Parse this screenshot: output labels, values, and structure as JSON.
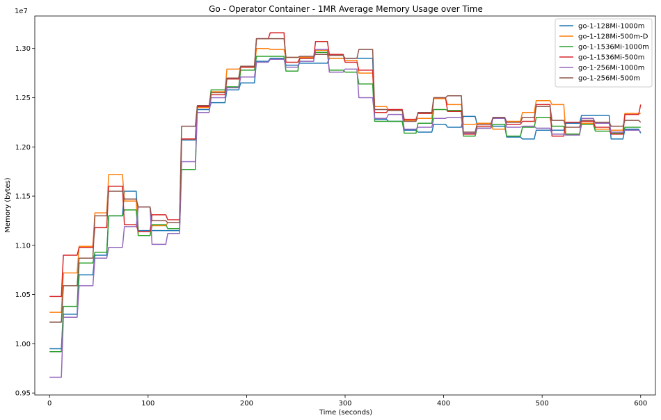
{
  "chart_data": {
    "type": "line",
    "title": "Go - Operator Container - 1MR Average Memory Usage over Time",
    "xlabel": "Time (seconds)",
    "ylabel": "Memory (bytes)",
    "y_offset_text": "1e7",
    "xlim": [
      -15,
      615
    ],
    "ylim": [
      9480000,
      13330000
    ],
    "x_ticks": [
      0,
      100,
      200,
      300,
      400,
      500,
      600
    ],
    "x_tick_labels": [
      "0",
      "100",
      "200",
      "300",
      "400",
      "500",
      "600"
    ],
    "y_ticks": [
      9500000,
      10000000,
      10500000,
      11000000,
      11500000,
      12000000,
      12500000,
      13000000
    ],
    "y_tick_labels": [
      "0.95",
      "1.00",
      "1.05",
      "1.10",
      "1.15",
      "1.20",
      "1.25",
      "1.30"
    ],
    "legend_position": "top-right",
    "series": [
      {
        "name": "go-1-128Mi-1000m",
        "color": "#1f77b4",
        "x": [
          0,
          12,
          14,
          28,
          30,
          44,
          46,
          58,
          60,
          74,
          76,
          88,
          90,
          102,
          104,
          118,
          120,
          132,
          134,
          148,
          150,
          162,
          164,
          178,
          180,
          192,
          194,
          208,
          210,
          222,
          224,
          238,
          240,
          252,
          254,
          268,
          270,
          282,
          284,
          298,
          300,
          312,
          314,
          328,
          330,
          342,
          344,
          358,
          360,
          372,
          374,
          388,
          390,
          402,
          404,
          418,
          420,
          432,
          434,
          448,
          450,
          462,
          464,
          478,
          480,
          492,
          494,
          508,
          510,
          522,
          524,
          538,
          540,
          552,
          554,
          568,
          570,
          582,
          584,
          598,
          600
        ],
        "y": [
          9950000,
          9950000,
          10300000,
          10300000,
          10700000,
          10700000,
          10900000,
          10900000,
          11300000,
          11300000,
          11550000,
          11550000,
          11150000,
          11150000,
          11150000,
          11150000,
          11150000,
          11150000,
          12070000,
          12070000,
          12380000,
          12380000,
          12450000,
          12450000,
          12580000,
          12580000,
          12650000,
          12650000,
          12870000,
          12870000,
          12900000,
          12900000,
          12830000,
          12830000,
          12850000,
          12850000,
          12850000,
          12850000,
          12900000,
          12900000,
          12900000,
          12900000,
          12900000,
          12900000,
          12280000,
          12280000,
          12260000,
          12260000,
          12170000,
          12170000,
          12150000,
          12150000,
          12230000,
          12230000,
          12200000,
          12200000,
          12310000,
          12310000,
          12230000,
          12230000,
          12210000,
          12210000,
          12100000,
          12100000,
          12080000,
          12080000,
          12170000,
          12170000,
          12170000,
          12170000,
          12240000,
          12240000,
          12320000,
          12320000,
          12320000,
          12320000,
          12080000,
          12080000,
          12180000,
          12180000,
          12140000
        ]
      },
      {
        "name": "go-1-128Mi-500m-D",
        "color": "#ff7f0e",
        "x": [
          0,
          12,
          14,
          28,
          30,
          44,
          46,
          58,
          60,
          74,
          76,
          88,
          90,
          102,
          104,
          118,
          120,
          132,
          134,
          148,
          150,
          162,
          164,
          178,
          180,
          192,
          194,
          208,
          210,
          222,
          224,
          238,
          240,
          252,
          254,
          268,
          270,
          282,
          284,
          298,
          300,
          312,
          314,
          328,
          330,
          342,
          344,
          358,
          360,
          372,
          374,
          388,
          390,
          402,
          404,
          418,
          420,
          432,
          434,
          448,
          450,
          462,
          464,
          478,
          480,
          492,
          494,
          508,
          510,
          522,
          524,
          538,
          540,
          552,
          554,
          568,
          570,
          582,
          584,
          598,
          600
        ],
        "y": [
          10320000,
          10320000,
          10720000,
          10720000,
          10990000,
          10990000,
          11330000,
          11330000,
          11720000,
          11720000,
          11450000,
          11450000,
          11100000,
          11100000,
          11200000,
          11200000,
          11230000,
          11230000,
          12080000,
          12080000,
          12400000,
          12400000,
          12560000,
          12560000,
          12790000,
          12790000,
          12810000,
          12810000,
          13000000,
          13000000,
          12990000,
          12990000,
          12910000,
          12910000,
          12910000,
          12910000,
          12980000,
          12980000,
          12900000,
          12900000,
          12880000,
          12880000,
          12750000,
          12750000,
          12410000,
          12410000,
          12370000,
          12370000,
          12270000,
          12270000,
          12290000,
          12290000,
          12490000,
          12490000,
          12430000,
          12430000,
          12230000,
          12230000,
          12240000,
          12240000,
          12180000,
          12180000,
          12260000,
          12260000,
          12350000,
          12350000,
          12470000,
          12470000,
          12430000,
          12430000,
          12130000,
          12130000,
          12240000,
          12240000,
          12180000,
          12180000,
          12170000,
          12170000,
          12340000,
          12340000,
          12340000
        ]
      },
      {
        "name": "go-1-1536Mi-1000m",
        "color": "#2ca02c",
        "x": [
          0,
          12,
          14,
          28,
          30,
          44,
          46,
          58,
          60,
          74,
          76,
          88,
          90,
          102,
          104,
          118,
          120,
          132,
          134,
          148,
          150,
          162,
          164,
          178,
          180,
          192,
          194,
          208,
          210,
          222,
          224,
          238,
          240,
          252,
          254,
          268,
          270,
          282,
          284,
          298,
          300,
          312,
          314,
          328,
          330,
          342,
          344,
          358,
          360,
          372,
          374,
          388,
          390,
          402,
          404,
          418,
          420,
          432,
          434,
          448,
          450,
          462,
          464,
          478,
          480,
          492,
          494,
          508,
          510,
          522,
          524,
          538,
          540,
          552,
          554,
          568,
          570,
          582,
          584,
          598,
          600
        ],
        "y": [
          9920000,
          9920000,
          10380000,
          10380000,
          10820000,
          10820000,
          10930000,
          10930000,
          11300000,
          11300000,
          11360000,
          11360000,
          11100000,
          11100000,
          11210000,
          11210000,
          11170000,
          11170000,
          11770000,
          11770000,
          12410000,
          12410000,
          12580000,
          12580000,
          12610000,
          12610000,
          12780000,
          12780000,
          12920000,
          12920000,
          12920000,
          12920000,
          12770000,
          12770000,
          12900000,
          12900000,
          12960000,
          12960000,
          12780000,
          12780000,
          12760000,
          12760000,
          12640000,
          12640000,
          12260000,
          12260000,
          12260000,
          12260000,
          12140000,
          12140000,
          12240000,
          12240000,
          12380000,
          12380000,
          12370000,
          12370000,
          12110000,
          12110000,
          12190000,
          12190000,
          12230000,
          12230000,
          12110000,
          12110000,
          12200000,
          12200000,
          12300000,
          12300000,
          12210000,
          12210000,
          12130000,
          12130000,
          12230000,
          12230000,
          12160000,
          12160000,
          12140000,
          12140000,
          12200000,
          12200000,
          12200000
        ]
      },
      {
        "name": "go-1-1536Mi-500m",
        "color": "#d62728",
        "x": [
          0,
          12,
          14,
          28,
          30,
          44,
          46,
          58,
          60,
          74,
          76,
          88,
          90,
          102,
          104,
          118,
          120,
          132,
          134,
          148,
          150,
          162,
          164,
          178,
          180,
          192,
          194,
          208,
          210,
          222,
          224,
          238,
          240,
          252,
          254,
          268,
          270,
          282,
          284,
          298,
          300,
          312,
          314,
          328,
          330,
          342,
          344,
          358,
          360,
          372,
          374,
          388,
          390,
          402,
          404,
          418,
          420,
          432,
          434,
          448,
          450,
          462,
          464,
          478,
          480,
          492,
          494,
          508,
          510,
          522,
          524,
          538,
          540,
          552,
          554,
          568,
          570,
          582,
          584,
          598,
          600
        ],
        "y": [
          10480000,
          10480000,
          10900000,
          10900000,
          10980000,
          10980000,
          11180000,
          11180000,
          11600000,
          11600000,
          11210000,
          11210000,
          11140000,
          11140000,
          11310000,
          11310000,
          11260000,
          11260000,
          12080000,
          12080000,
          12410000,
          12410000,
          12530000,
          12530000,
          12690000,
          12690000,
          12810000,
          12810000,
          13100000,
          13100000,
          13160000,
          13160000,
          12860000,
          12860000,
          12900000,
          12900000,
          13070000,
          13070000,
          12940000,
          12940000,
          12860000,
          12860000,
          12780000,
          12780000,
          12350000,
          12350000,
          12380000,
          12380000,
          12280000,
          12280000,
          12340000,
          12340000,
          12500000,
          12500000,
          12360000,
          12360000,
          12130000,
          12130000,
          12210000,
          12210000,
          12290000,
          12290000,
          12230000,
          12230000,
          12260000,
          12260000,
          12430000,
          12430000,
          12110000,
          12110000,
          12250000,
          12250000,
          12260000,
          12260000,
          12200000,
          12200000,
          12130000,
          12130000,
          12330000,
          12330000,
          12430000
        ]
      },
      {
        "name": "go-1-256Mi-1000m",
        "color": "#9467bd",
        "x": [
          0,
          12,
          14,
          28,
          30,
          44,
          46,
          58,
          60,
          74,
          76,
          88,
          90,
          102,
          104,
          118,
          120,
          132,
          134,
          148,
          150,
          162,
          164,
          178,
          180,
          192,
          194,
          208,
          210,
          222,
          224,
          238,
          240,
          252,
          254,
          268,
          270,
          282,
          284,
          298,
          300,
          312,
          314,
          328,
          330,
          342,
          344,
          358,
          360,
          372,
          374,
          388,
          390,
          402,
          404,
          418,
          420,
          432,
          434,
          448,
          450,
          462,
          464,
          478,
          480,
          492,
          494,
          508,
          510,
          522,
          524,
          538,
          540,
          552,
          554,
          568,
          570,
          582,
          584,
          598,
          600
        ],
        "y": [
          9660000,
          9660000,
          10270000,
          10270000,
          10590000,
          10590000,
          10870000,
          10870000,
          10980000,
          10980000,
          11190000,
          11190000,
          11390000,
          11390000,
          11010000,
          11010000,
          11120000,
          11120000,
          11850000,
          11850000,
          12350000,
          12350000,
          12500000,
          12500000,
          12600000,
          12600000,
          12710000,
          12710000,
          12860000,
          12860000,
          12890000,
          12890000,
          12810000,
          12810000,
          12870000,
          12870000,
          12990000,
          12990000,
          12760000,
          12760000,
          12790000,
          12790000,
          12500000,
          12500000,
          12290000,
          12290000,
          12330000,
          12330000,
          12180000,
          12180000,
          12200000,
          12200000,
          12290000,
          12290000,
          12300000,
          12300000,
          12140000,
          12140000,
          12190000,
          12190000,
          12290000,
          12290000,
          12200000,
          12200000,
          12210000,
          12210000,
          12190000,
          12190000,
          12130000,
          12130000,
          12120000,
          12120000,
          12290000,
          12290000,
          12240000,
          12240000,
          12150000,
          12150000,
          12170000,
          12170000,
          12150000
        ]
      },
      {
        "name": "go-1-256Mi-500m",
        "color": "#8c564b",
        "x": [
          0,
          12,
          14,
          28,
          30,
          44,
          46,
          58,
          60,
          74,
          76,
          88,
          90,
          102,
          104,
          118,
          120,
          132,
          134,
          148,
          150,
          162,
          164,
          178,
          180,
          192,
          194,
          208,
          210,
          222,
          224,
          238,
          240,
          252,
          254,
          268,
          270,
          282,
          284,
          298,
          300,
          312,
          314,
          328,
          330,
          342,
          344,
          358,
          360,
          372,
          374,
          388,
          390,
          402,
          404,
          418,
          420,
          432,
          434,
          448,
          450,
          462,
          464,
          478,
          480,
          492,
          494,
          508,
          510,
          522,
          524,
          538,
          540,
          552,
          554,
          568,
          570,
          582,
          584,
          598,
          600
        ],
        "y": [
          10220000,
          10220000,
          10590000,
          10590000,
          10870000,
          10870000,
          11300000,
          11300000,
          11550000,
          11550000,
          11470000,
          11470000,
          11390000,
          11390000,
          11250000,
          11250000,
          11230000,
          11230000,
          12210000,
          12210000,
          12420000,
          12420000,
          12550000,
          12550000,
          12700000,
          12700000,
          12820000,
          12820000,
          13100000,
          13100000,
          13100000,
          13100000,
          12910000,
          12910000,
          12920000,
          12920000,
          12940000,
          12940000,
          12930000,
          12930000,
          12900000,
          12900000,
          12990000,
          12990000,
          12380000,
          12380000,
          12370000,
          12370000,
          12260000,
          12260000,
          12350000,
          12350000,
          12500000,
          12500000,
          12520000,
          12520000,
          12150000,
          12150000,
          12230000,
          12230000,
          12300000,
          12300000,
          12250000,
          12250000,
          12300000,
          12300000,
          12410000,
          12410000,
          12270000,
          12270000,
          12200000,
          12200000,
          12270000,
          12270000,
          12250000,
          12250000,
          12210000,
          12210000,
          12270000,
          12270000,
          12250000
        ]
      }
    ]
  }
}
